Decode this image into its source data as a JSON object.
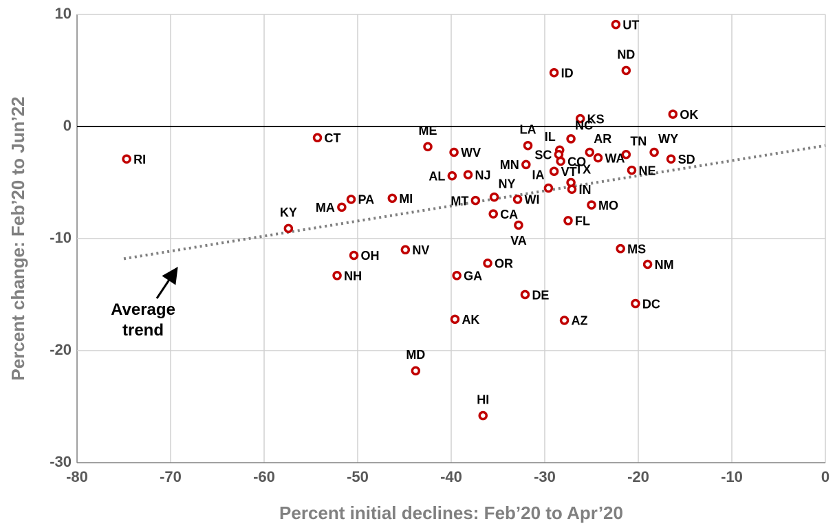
{
  "chart_data": {
    "type": "scatter",
    "xlabel": "Percent initial declines: Feb’20 to Apr’20",
    "ylabel": "Percent change: Feb’20 to Jun’22",
    "xlim": [
      -80,
      0
    ],
    "ylim": [
      -30,
      10
    ],
    "xticks": [
      -80,
      -70,
      -60,
      -50,
      -40,
      -30,
      -20,
      -10,
      0
    ],
    "yticks": [
      -30,
      -20,
      -10,
      0,
      10
    ],
    "grid": true,
    "color": "#c00000",
    "labels": [
      "UT",
      "ND",
      "ID",
      "KS",
      "OK",
      "RI",
      "CT",
      "ME",
      "LA",
      "IL",
      "NC",
      "SC",
      "CO",
      "AR",
      "WA",
      "TN",
      "WY",
      "SD",
      "NE",
      "WV",
      "AL",
      "NJ",
      "MN",
      "VT",
      "IA",
      "TX",
      "IN",
      "MO",
      "FL",
      "NY",
      "WI",
      "MT",
      "CA",
      "VA",
      "MI",
      "PA",
      "MA",
      "KY",
      "NV",
      "OH",
      "NH",
      "OR",
      "GA",
      "DE",
      "AK",
      "AZ",
      "MS",
      "NM",
      "DC",
      "MD",
      "HI"
    ],
    "x": [
      -22.4,
      -21.3,
      -29.0,
      -26.2,
      -16.3,
      -74.7,
      -54.3,
      -42.5,
      -31.8,
      -28.4,
      -27.2,
      -28.5,
      -28.3,
      -25.2,
      -24.3,
      -21.3,
      -18.3,
      -16.5,
      -20.7,
      -39.7,
      -39.9,
      -38.2,
      -32.0,
      -29.0,
      -29.6,
      -27.2,
      -27.1,
      -25.0,
      -27.5,
      -35.4,
      -32.9,
      -37.4,
      -35.5,
      -32.8,
      -46.3,
      -50.7,
      -51.7,
      -57.4,
      -44.9,
      -50.4,
      -52.2,
      -36.1,
      -39.4,
      -32.1,
      -39.6,
      -27.9,
      -21.9,
      -19.0,
      -20.3,
      -43.8,
      -36.6
    ],
    "y": [
      9.1,
      5.0,
      4.8,
      0.7,
      1.1,
      -2.9,
      -1.0,
      -1.8,
      -1.7,
      -2.1,
      -1.1,
      -2.5,
      -3.1,
      -2.3,
      -2.8,
      -2.5,
      -2.3,
      -2.9,
      -3.9,
      -2.3,
      -4.4,
      -4.3,
      -3.4,
      -4.0,
      -5.5,
      -5.0,
      -5.6,
      -7.0,
      -8.4,
      -6.3,
      -6.5,
      -6.6,
      -7.8,
      -8.8,
      -6.4,
      -6.5,
      -7.2,
      -9.1,
      -11.0,
      -11.5,
      -13.3,
      -12.2,
      -13.3,
      -15.0,
      -17.2,
      -17.3,
      -10.9,
      -12.3,
      -15.8,
      -21.8,
      -25.8
    ],
    "trend": {
      "x": [
        -75,
        0
      ],
      "y": [
        -11.8,
        -1.7
      ]
    },
    "annotation": "Average trend"
  }
}
